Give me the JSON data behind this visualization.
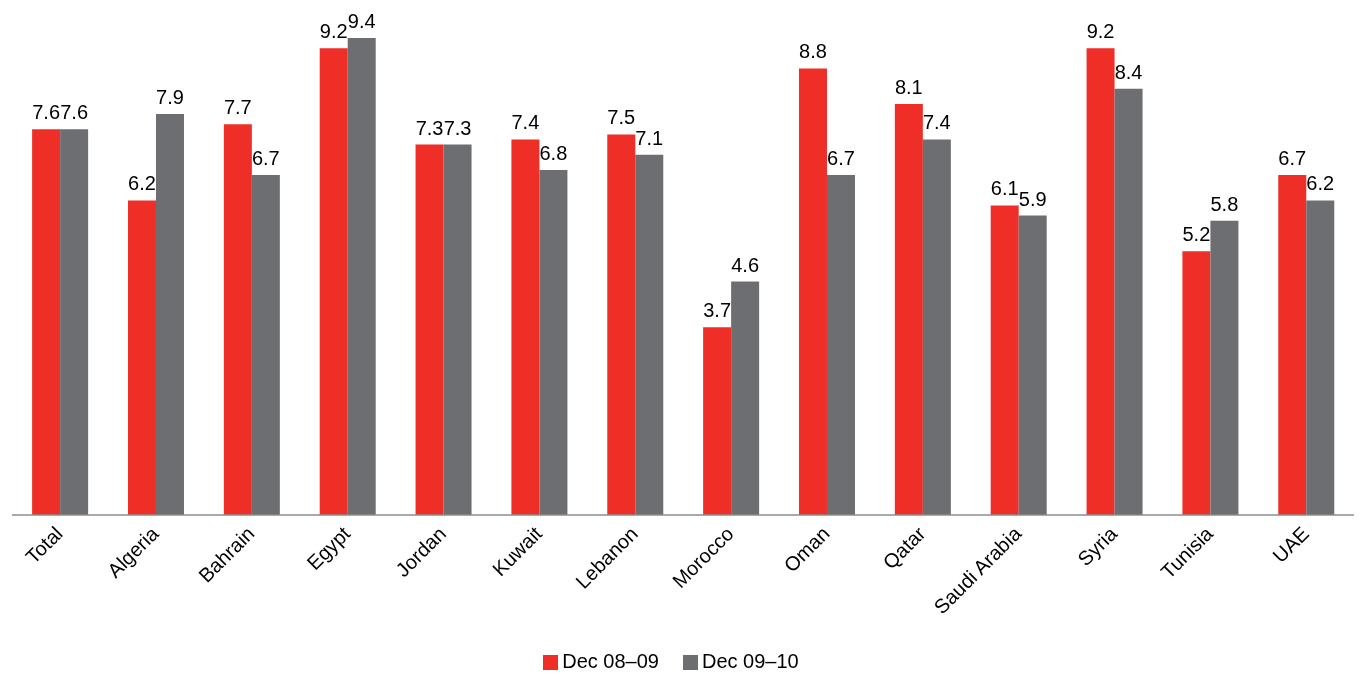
{
  "chart_data": {
    "type": "bar",
    "categories": [
      "Total",
      "Algeria",
      "Bahrain",
      "Egypt",
      "Jordan",
      "Kuwait",
      "Lebanon",
      "Morocco",
      "Oman",
      "Qatar",
      "Saudi Arabia",
      "Syria",
      "Tunisia",
      "UAE"
    ],
    "series": [
      {
        "name": "Dec 08–09",
        "color": "#ee2e27",
        "values": [
          7.6,
          6.2,
          7.7,
          9.2,
          7.3,
          7.4,
          7.5,
          3.7,
          8.8,
          8.1,
          6.1,
          9.2,
          5.2,
          6.7
        ]
      },
      {
        "name": "Dec 09–10",
        "color": "#6d6e71",
        "values": [
          7.6,
          7.9,
          6.7,
          9.4,
          7.3,
          6.8,
          7.1,
          4.6,
          6.7,
          7.4,
          5.9,
          8.4,
          5.8,
          6.2
        ]
      }
    ],
    "data_labels": true,
    "legend": "bottom",
    "tick_labels": "x"
  }
}
